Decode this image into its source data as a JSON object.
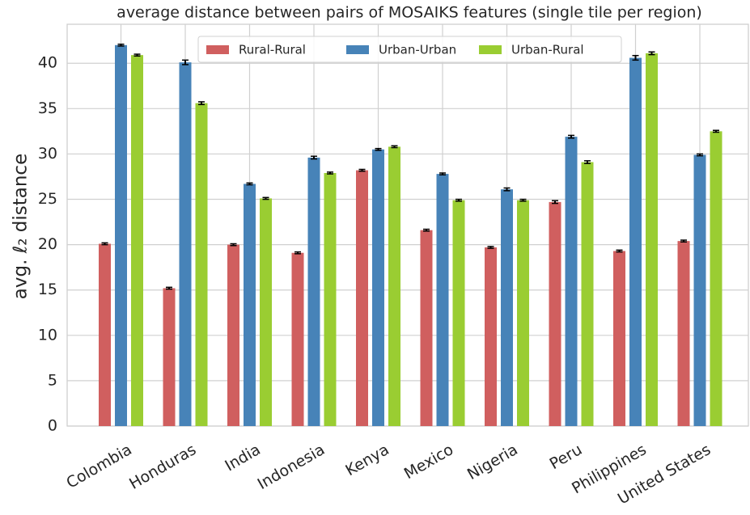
{
  "chart_data": {
    "type": "bar",
    "title": "average distance between pairs of MOSAIKS features (single tile per region)",
    "y_label": "avg. ℓ₂ distance",
    "categories": [
      "Colombia",
      "Honduras",
      "India",
      "Indonesia",
      "Kenya",
      "Mexico",
      "Nigeria",
      "Peru",
      "Philippines",
      "United States"
    ],
    "series": [
      {
        "name": "Rural-Rural",
        "color": "#d05f5f",
        "values": [
          20.1,
          15.2,
          20.0,
          19.1,
          28.2,
          21.6,
          19.7,
          24.7,
          19.3,
          20.4
        ],
        "errors": [
          0.1,
          0.1,
          0.1,
          0.1,
          0.1,
          0.1,
          0.1,
          0.15,
          0.1,
          0.1
        ]
      },
      {
        "name": "Urban-Urban",
        "color": "#4783b8",
        "values": [
          42.0,
          40.1,
          26.7,
          29.6,
          30.5,
          27.8,
          26.1,
          31.9,
          40.6,
          29.9
        ],
        "errors": [
          0.1,
          0.25,
          0.1,
          0.15,
          0.1,
          0.1,
          0.15,
          0.15,
          0.25,
          0.1
        ]
      },
      {
        "name": "Urban-Rural",
        "color": "#9acd32",
        "values": [
          40.9,
          35.6,
          25.1,
          27.9,
          30.8,
          24.9,
          24.9,
          29.1,
          41.1,
          32.5
        ],
        "errors": [
          0.1,
          0.15,
          0.1,
          0.1,
          0.1,
          0.1,
          0.1,
          0.15,
          0.15,
          0.1
        ]
      }
    ],
    "ylim": [
      0,
      44.3
    ],
    "yticks": [
      0,
      5,
      10,
      15,
      20,
      25,
      30,
      35,
      40
    ],
    "grid": true,
    "legend": "top"
  }
}
